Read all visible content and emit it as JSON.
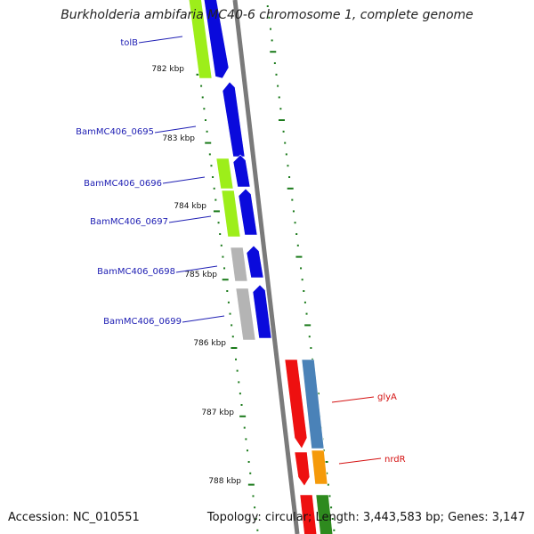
{
  "header": {
    "title": "Burkholderia ambifaria MC40-6 chromosome 1, complete genome"
  },
  "footer": {
    "accession": "Accession: NC_010551",
    "topology": "Topology: circular; Length: 3,443,583 bp; Genes: 3,147"
  },
  "colors": {
    "backbone": "#7a7a7a",
    "tick": "#1a7a1a",
    "forward_gene": "#0a0adc",
    "lime_gene": "#9dee1a",
    "gray_gene": "#b4b4b4",
    "red_gene": "#ee1010",
    "steel_gene": "#4a82b8",
    "orange_gene": "#f59a0a",
    "green_gene": "#2e8a1e",
    "left_label": "#2020b4",
    "right_label": "#d41010"
  },
  "kbp_ticks": [
    "782 kbp",
    "783 kbp",
    "784 kbp",
    "785 kbp",
    "786 kbp",
    "787 kbp",
    "788 kbp"
  ],
  "gene_labels_left": [
    "tolB",
    "BamMC406_0695",
    "BamMC406_0696",
    "BamMC406_0697",
    "BamMC406_0698",
    "BamMC406_0699"
  ],
  "gene_labels_right": [
    "glyA",
    "nrdR"
  ]
}
